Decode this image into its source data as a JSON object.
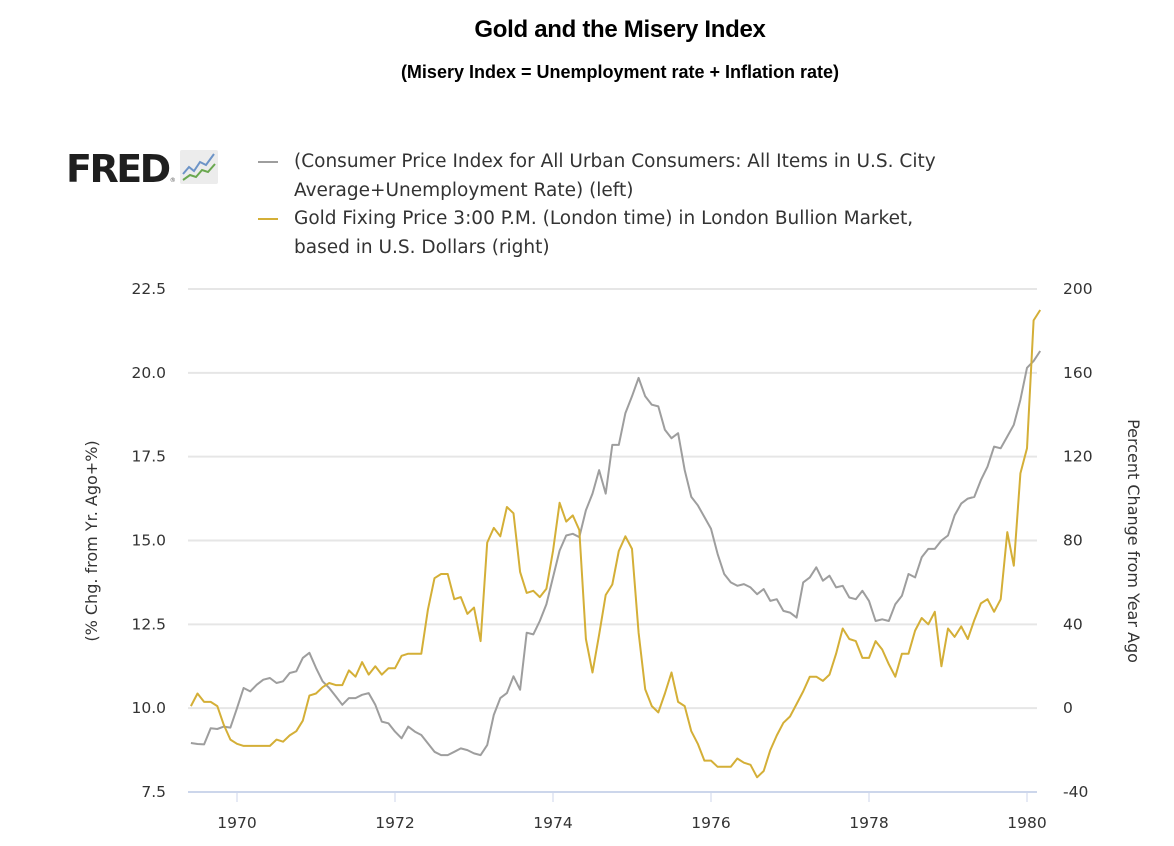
{
  "chart_data": {
    "type": "line",
    "title": "Gold and the Misery Index",
    "subtitle": "(Misery Index = Unemployment rate + Inflation rate)",
    "source_logo": "FRED",
    "x_tick_labels": [
      "1970",
      "1972",
      "1974",
      "1976",
      "1978",
      "1980"
    ],
    "x_ticks": [
      1970,
      1972,
      1974,
      1976,
      1978,
      1980
    ],
    "xlim": [
      1969.42,
      1980.1
    ],
    "x_start": 1969.4167,
    "x_step_months": 1,
    "left_axis": {
      "label": "(% Chg. from Yr. Ago+%)",
      "ylim": [
        7.5,
        22.5
      ],
      "ticks": [
        7.5,
        10.0,
        12.5,
        15.0,
        17.5,
        20.0,
        22.5
      ],
      "tick_labels": [
        "7.5",
        "10.0",
        "12.5",
        "15.0",
        "17.5",
        "20.0",
        "22.5"
      ]
    },
    "right_axis": {
      "label": "Percent Change from Year Ago",
      "ylim": [
        -40,
        200
      ],
      "ticks": [
        -40,
        0,
        40,
        80,
        120,
        160,
        200
      ],
      "tick_labels": [
        "-40",
        "0",
        "40",
        "80",
        "120",
        "160",
        "200"
      ]
    },
    "grid": true,
    "legend_position": "top-left",
    "series": [
      {
        "name": "(Consumer Price Index for All Urban Consumers: All Items in U.S. City Average+Unemployment Rate) (left)",
        "axis": "left",
        "color": "#9e9e9e",
        "values": [
          8.96,
          8.93,
          8.92,
          9.4,
          9.38,
          9.45,
          9.42,
          10.0,
          10.6,
          10.5,
          10.7,
          10.85,
          10.9,
          10.75,
          10.8,
          11.05,
          11.1,
          11.5,
          11.65,
          11.2,
          10.8,
          10.6,
          10.35,
          10.1,
          10.3,
          10.3,
          10.4,
          10.45,
          10.1,
          9.6,
          9.55,
          9.3,
          9.1,
          9.45,
          9.3,
          9.2,
          8.95,
          8.7,
          8.6,
          8.6,
          8.7,
          8.8,
          8.75,
          8.65,
          8.6,
          8.9,
          9.8,
          10.3,
          10.45,
          10.95,
          10.55,
          12.25,
          12.2,
          12.6,
          13.1,
          13.9,
          14.7,
          15.15,
          15.2,
          15.1,
          15.9,
          16.4,
          17.1,
          16.4,
          17.85,
          17.85,
          18.8,
          19.3,
          19.85,
          19.3,
          19.05,
          19.0,
          18.3,
          18.05,
          18.2,
          17.1,
          16.3,
          16.05,
          15.7,
          15.35,
          14.6,
          14.0,
          13.75,
          13.65,
          13.7,
          13.6,
          13.4,
          13.55,
          13.2,
          13.25,
          12.9,
          12.85,
          12.7,
          13.75,
          13.9,
          14.2,
          13.8,
          13.95,
          13.6,
          13.65,
          13.3,
          13.25,
          13.5,
          13.2,
          12.6,
          12.65,
          12.6,
          13.1,
          13.35,
          14.0,
          13.9,
          14.5,
          14.75,
          14.75,
          15.0,
          15.15,
          15.75,
          16.1,
          16.25,
          16.3,
          16.8,
          17.2,
          17.8,
          17.75,
          18.1,
          18.45,
          19.2,
          20.15,
          20.35,
          20.65
        ]
      },
      {
        "name": "Gold Fixing Price 3:00 P.M. (London time) in London Bullion Market, based in U.S. Dollars (right)",
        "axis": "right",
        "color": "#d4af37",
        "values": [
          1,
          7,
          3,
          3,
          1,
          -8,
          -15,
          -17,
          -18,
          -18,
          -18,
          -18,
          -18,
          -15,
          -16,
          -13,
          -11,
          -6,
          6,
          7,
          10,
          12,
          11,
          11,
          18,
          15,
          22,
          16,
          20,
          16,
          19,
          19,
          25,
          26,
          26,
          26,
          47,
          62,
          64,
          64,
          52,
          53,
          45,
          48,
          32,
          79,
          86,
          82,
          96,
          93,
          65,
          55,
          56,
          53,
          57,
          75,
          98,
          89,
          92,
          85,
          33,
          17,
          35,
          54,
          59,
          75,
          82,
          76,
          36,
          9,
          1,
          -2,
          7,
          17,
          3,
          1,
          -11,
          -17,
          -25,
          -25,
          -28,
          -28,
          -28,
          -24,
          -26,
          -27,
          -33,
          -30,
          -20,
          -13,
          -7,
          -4,
          2,
          8,
          15,
          15,
          13,
          16,
          26,
          38,
          33,
          32,
          24,
          24,
          32,
          28,
          21,
          15,
          26,
          26,
          37,
          43,
          40,
          46,
          20,
          38,
          34,
          39,
          33,
          42,
          50,
          52,
          46,
          52,
          84,
          68,
          112,
          124,
          185,
          190
        ]
      }
    ]
  }
}
